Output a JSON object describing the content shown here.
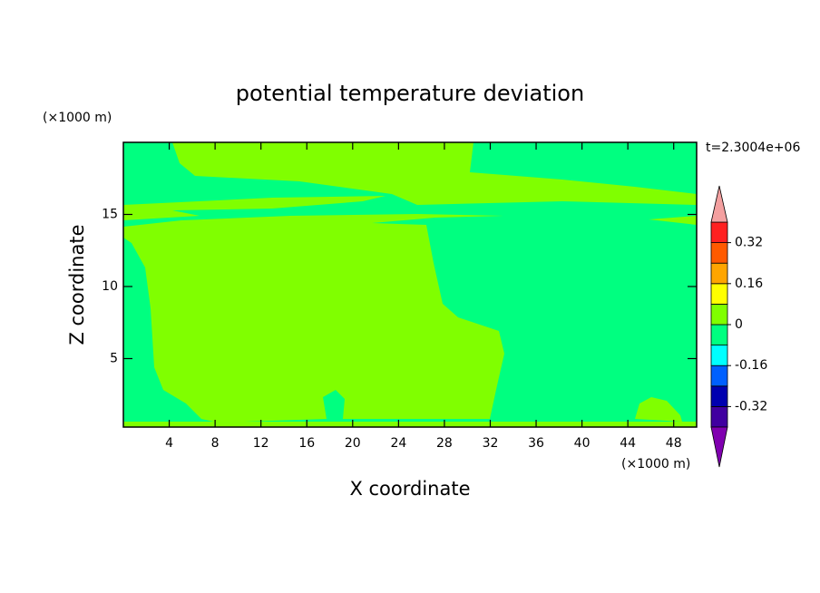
{
  "chart_data": {
    "type": "contour",
    "title": "potential temperature deviation",
    "subtitle": "t=2.3004e+06",
    "x_label": "X coordinate",
    "y_label": "Z coordinate",
    "x_unit": "(×1000 m)",
    "y_unit": "(×1000 m)",
    "xlim": [
      0,
      50
    ],
    "ylim": [
      0.25,
      20
    ],
    "xticks": [
      4,
      8,
      12,
      16,
      20,
      24,
      28,
      32,
      36,
      40,
      44,
      48
    ],
    "yticks": [
      5,
      10,
      15
    ],
    "colorbar": {
      "clim": [
        -0.4,
        0.4
      ],
      "ticks": [
        -0.32,
        -0.16,
        0,
        0.16,
        0.32
      ],
      "colors": [
        "#8000b0",
        "#4000a0",
        "#0000b0",
        "#0060ff",
        "#00ffff",
        "#00ff80",
        "#80ff00",
        "#ffff00",
        "#ffa500",
        "#ff5a00",
        "#ff2020",
        "#f4a0a0"
      ],
      "extend": "both"
    }
  }
}
